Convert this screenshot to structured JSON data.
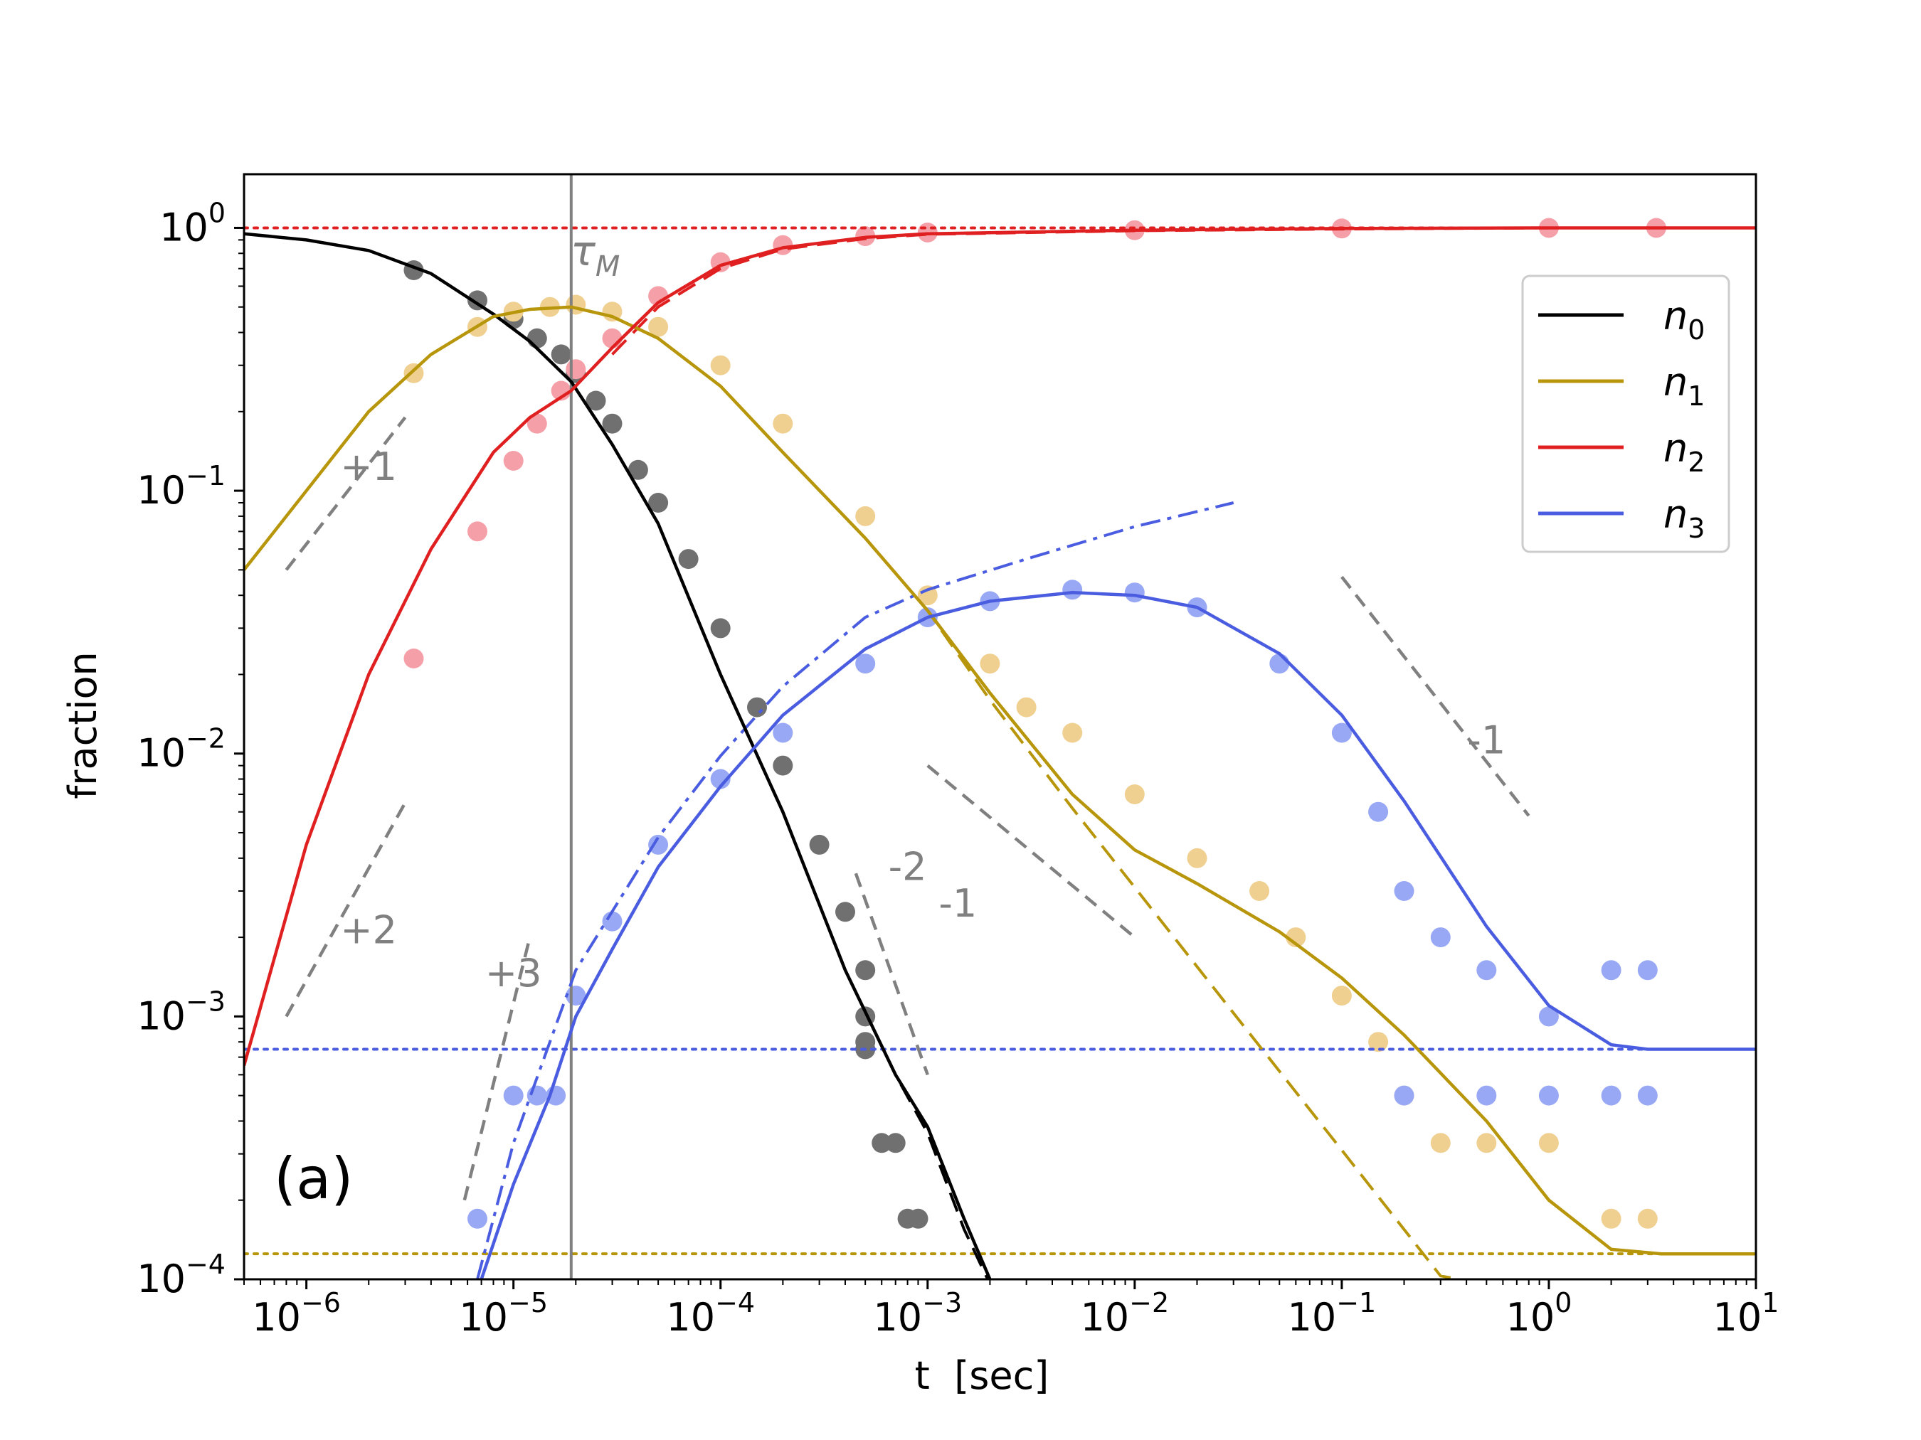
{
  "chart_data": {
    "type": "line",
    "panel_label": "(a)",
    "xlabel": "t  [sec]",
    "ylabel": "fraction",
    "xscale": "log",
    "yscale": "log",
    "xlim": [
      5e-07,
      10
    ],
    "ylim": [
      0.0001,
      1.6
    ],
    "grid": false,
    "legend_position": "top-right",
    "x_ticks": [
      {
        "value": 1e-06,
        "base": "10",
        "exp": "−6"
      },
      {
        "value": 1e-05,
        "base": "10",
        "exp": "−5"
      },
      {
        "value": 0.0001,
        "base": "10",
        "exp": "−4"
      },
      {
        "value": 0.001,
        "base": "10",
        "exp": "−3"
      },
      {
        "value": 0.01,
        "base": "10",
        "exp": "−2"
      },
      {
        "value": 0.1,
        "base": "10",
        "exp": "−1"
      },
      {
        "value": 1,
        "base": "10",
        "exp": "0"
      },
      {
        "value": 10,
        "base": "10",
        "exp": "1"
      }
    ],
    "y_ticks": [
      {
        "value": 0.0001,
        "base": "10",
        "exp": "−4"
      },
      {
        "value": 0.001,
        "base": "10",
        "exp": "−3"
      },
      {
        "value": 0.01,
        "base": "10",
        "exp": "−2"
      },
      {
        "value": 0.1,
        "base": "10",
        "exp": "−1"
      },
      {
        "value": 1,
        "base": "10",
        "exp": "0"
      }
    ],
    "vline": {
      "x": 1.9e-05,
      "label": "τ",
      "sub": "M",
      "color": "#808080"
    },
    "hlines": [
      {
        "y": 1.0,
        "color": "#e02020",
        "style": "dotted"
      },
      {
        "y": 0.00075,
        "color": "#4a5ce0",
        "style": "dotted"
      },
      {
        "y": 0.000125,
        "color": "#b8960b",
        "style": "dotted"
      }
    ],
    "series": [
      {
        "name": "n",
        "sub": "0",
        "color": "#000000",
        "x": [
          5e-07,
          1e-06,
          2e-06,
          4e-06,
          8e-06,
          1.2e-05,
          1.9e-05,
          3e-05,
          5e-05,
          0.0001,
          0.0002,
          0.0004,
          0.0007,
          0.001,
          0.0015,
          0.002
        ],
        "y": [
          0.95,
          0.9,
          0.82,
          0.67,
          0.47,
          0.37,
          0.26,
          0.15,
          0.075,
          0.02,
          0.006,
          0.0015,
          0.0006,
          0.00038,
          0.00017,
          0.0001
        ]
      },
      {
        "name": "n",
        "sub": "1",
        "color": "#b8960b",
        "x": [
          5e-07,
          1e-06,
          2e-06,
          4e-06,
          8e-06,
          1.2e-05,
          1.9e-05,
          3e-05,
          5e-05,
          0.0001,
          0.0002,
          0.0005,
          0.001,
          0.002,
          0.005,
          0.01,
          0.02,
          0.05,
          0.1,
          0.2,
          0.5,
          1,
          2,
          3.5,
          10
        ],
        "y": [
          0.05,
          0.1,
          0.2,
          0.33,
          0.46,
          0.49,
          0.5,
          0.46,
          0.38,
          0.25,
          0.14,
          0.066,
          0.035,
          0.017,
          0.007,
          0.0043,
          0.0032,
          0.0021,
          0.0014,
          0.00085,
          0.0004,
          0.0002,
          0.00013,
          0.000125,
          0.000125
        ]
      },
      {
        "name": "n",
        "sub": "2",
        "color": "#e02020",
        "x": [
          5e-07,
          1e-06,
          2e-06,
          4e-06,
          8e-06,
          1.2e-05,
          1.9e-05,
          3e-05,
          5e-05,
          0.0001,
          0.0002,
          0.0005,
          0.001,
          0.01,
          0.1,
          1,
          10
        ],
        "y": [
          0.00065,
          0.0045,
          0.02,
          0.06,
          0.14,
          0.19,
          0.24,
          0.35,
          0.52,
          0.72,
          0.84,
          0.92,
          0.95,
          0.98,
          0.995,
          1.0,
          1.0
        ]
      },
      {
        "name": "n",
        "sub": "3",
        "color": "#4a5ce0",
        "x": [
          7e-06,
          1e-05,
          1.5e-05,
          2e-05,
          3e-05,
          5e-05,
          0.0001,
          0.0002,
          0.0005,
          0.001,
          0.002,
          0.005,
          0.01,
          0.02,
          0.05,
          0.1,
          0.2,
          0.5,
          1,
          2,
          3,
          10
        ],
        "y": [
          0.0001,
          0.00023,
          0.0005,
          0.001,
          0.0018,
          0.0037,
          0.0075,
          0.014,
          0.025,
          0.033,
          0.038,
          0.041,
          0.04,
          0.036,
          0.024,
          0.014,
          0.0066,
          0.0022,
          0.0011,
          0.00078,
          0.00075,
          0.00075
        ]
      }
    ],
    "dashed_approximations": [
      {
        "color": "#000000",
        "style": "dashed",
        "x": [
          0.0001,
          0.0002,
          0.0004,
          0.0007,
          0.001,
          0.0015,
          0.00195
        ],
        "y": [
          0.02,
          0.006,
          0.0015,
          0.0006,
          0.00036,
          0.000155,
          0.0001
        ]
      },
      {
        "color": "#b8960b",
        "style": "dashed",
        "x": [
          0.0005,
          0.001,
          0.002,
          0.005,
          0.01,
          0.03,
          0.1,
          0.3,
          0.37
        ],
        "y": [
          0.066,
          0.035,
          0.016,
          0.0062,
          0.0031,
          0.00103,
          0.00031,
          0.000103,
          0.0001
        ]
      },
      {
        "color": "#e02020",
        "style": "dashed",
        "x": [
          3e-05,
          5e-05,
          0.0001,
          0.0002,
          0.0005,
          0.001,
          0.01,
          0.1,
          1
        ],
        "y": [
          0.33,
          0.5,
          0.7,
          0.83,
          0.91,
          0.945,
          0.975,
          0.99,
          1.0
        ]
      },
      {
        "color": "#4a5ce0",
        "style": "dashdot",
        "x": [
          6.7e-06,
          1e-05,
          2e-05,
          5e-05,
          0.0001,
          0.0002,
          0.0005,
          0.001,
          0.003,
          0.01,
          0.03
        ],
        "y": [
          0.0001,
          0.00033,
          0.0015,
          0.0048,
          0.0098,
          0.018,
          0.033,
          0.042,
          0.055,
          0.073,
          0.09
        ]
      }
    ],
    "scatter_series": [
      {
        "name": "n0 data",
        "color": "#707070",
        "points": [
          [
            3.3e-06,
            0.69
          ],
          [
            6.7e-06,
            0.53
          ],
          [
            1e-05,
            0.45
          ],
          [
            1.3e-05,
            0.38
          ],
          [
            1.7e-05,
            0.33
          ],
          [
            2e-05,
            0.28
          ],
          [
            2.5e-05,
            0.22
          ],
          [
            3e-05,
            0.18
          ],
          [
            4e-05,
            0.12
          ],
          [
            5e-05,
            0.09
          ],
          [
            7e-05,
            0.055
          ],
          [
            0.0001,
            0.03
          ],
          [
            0.00015,
            0.015
          ],
          [
            0.0002,
            0.009
          ],
          [
            0.0003,
            0.0045
          ],
          [
            0.0004,
            0.0025
          ],
          [
            0.0005,
            0.0015
          ],
          [
            0.0005,
            0.001
          ],
          [
            0.0005,
            0.0008
          ],
          [
            0.0005,
            0.00075
          ],
          [
            0.0006,
            0.00033
          ],
          [
            0.0007,
            0.00033
          ],
          [
            0.0008,
            0.00017
          ],
          [
            0.0009,
            0.00017
          ]
        ]
      },
      {
        "name": "n1 data",
        "color": "#f0d090",
        "points": [
          [
            3.3e-06,
            0.28
          ],
          [
            6.7e-06,
            0.42
          ],
          [
            1e-05,
            0.48
          ],
          [
            1.5e-05,
            0.5
          ],
          [
            2e-05,
            0.51
          ],
          [
            3e-05,
            0.48
          ],
          [
            5e-05,
            0.42
          ],
          [
            0.0001,
            0.3
          ],
          [
            0.0002,
            0.18
          ],
          [
            0.0005,
            0.08
          ],
          [
            0.001,
            0.04
          ],
          [
            0.002,
            0.022
          ],
          [
            0.003,
            0.015
          ],
          [
            0.005,
            0.012
          ],
          [
            0.01,
            0.007
          ],
          [
            0.02,
            0.004
          ],
          [
            0.04,
            0.003
          ],
          [
            0.06,
            0.002
          ],
          [
            0.1,
            0.0012
          ],
          [
            0.15,
            0.0008
          ],
          [
            0.2,
            0.0005
          ],
          [
            0.3,
            0.00033
          ],
          [
            0.5,
            0.00033
          ],
          [
            1,
            0.00033
          ],
          [
            2,
            0.00017
          ],
          [
            3,
            0.00017
          ]
        ]
      },
      {
        "name": "n2 data",
        "color": "#f5a0a8",
        "points": [
          [
            3.3e-06,
            0.023
          ],
          [
            6.7e-06,
            0.07
          ],
          [
            1e-05,
            0.13
          ],
          [
            1.3e-05,
            0.18
          ],
          [
            1.7e-05,
            0.24
          ],
          [
            2e-05,
            0.29
          ],
          [
            3e-05,
            0.38
          ],
          [
            5e-05,
            0.55
          ],
          [
            0.0001,
            0.74
          ],
          [
            0.0002,
            0.86
          ],
          [
            0.0005,
            0.93
          ],
          [
            0.001,
            0.96
          ],
          [
            0.01,
            0.98
          ],
          [
            0.1,
            0.995
          ],
          [
            1,
            1.0
          ],
          [
            3.3,
            1.0
          ]
        ]
      },
      {
        "name": "n3 data",
        "color": "#98a8f5",
        "points": [
          [
            6.7e-06,
            0.00017
          ],
          [
            1e-05,
            0.0005
          ],
          [
            1.3e-05,
            0.0005
          ],
          [
            1.6e-05,
            0.0005
          ],
          [
            2e-05,
            0.0012
          ],
          [
            3e-05,
            0.0023
          ],
          [
            5e-05,
            0.0045
          ],
          [
            0.0001,
            0.008
          ],
          [
            0.0002,
            0.012
          ],
          [
            0.0005,
            0.022
          ],
          [
            0.001,
            0.033
          ],
          [
            0.002,
            0.038
          ],
          [
            0.005,
            0.042
          ],
          [
            0.01,
            0.041
          ],
          [
            0.02,
            0.036
          ],
          [
            0.05,
            0.022
          ],
          [
            0.1,
            0.012
          ],
          [
            0.15,
            0.006
          ],
          [
            0.2,
            0.003
          ],
          [
            0.3,
            0.002
          ],
          [
            0.5,
            0.0015
          ],
          [
            1,
            0.001
          ],
          [
            2,
            0.0015
          ],
          [
            3,
            0.0015
          ],
          [
            0.2,
            0.0005
          ],
          [
            0.5,
            0.0005
          ],
          [
            1,
            0.0005
          ],
          [
            2,
            0.0005
          ],
          [
            3,
            0.0005
          ]
        ]
      }
    ],
    "slope_guides": [
      {
        "label": "+1",
        "x": [
          8e-07,
          3e-06
        ],
        "y": [
          0.05,
          0.19
        ],
        "label_at": [
          2e-06,
          0.11
        ]
      },
      {
        "label": "+2",
        "x": [
          8e-07,
          3e-06
        ],
        "y": [
          0.001,
          0.0065
        ],
        "label_at": [
          2e-06,
          0.0019
        ]
      },
      {
        "label": "+3",
        "x": [
          5.8e-06,
          1.2e-05
        ],
        "y": [
          0.0002,
          0.002
        ],
        "label_at": [
          1e-05,
          0.0013
        ]
      },
      {
        "label": "-2",
        "x": [
          0.00045,
          0.001
        ],
        "y": [
          0.0035,
          0.0006
        ],
        "label_at": [
          0.0008,
          0.0033
        ]
      },
      {
        "label": "-1",
        "x": [
          0.001,
          0.01
        ],
        "y": [
          0.009,
          0.002
        ],
        "label_at": [
          0.0014,
          0.0024
        ]
      },
      {
        "label": "-1",
        "x": [
          0.1,
          0.8
        ],
        "y": [
          0.047,
          0.0058
        ],
        "label_at": [
          0.5,
          0.01
        ]
      }
    ]
  }
}
